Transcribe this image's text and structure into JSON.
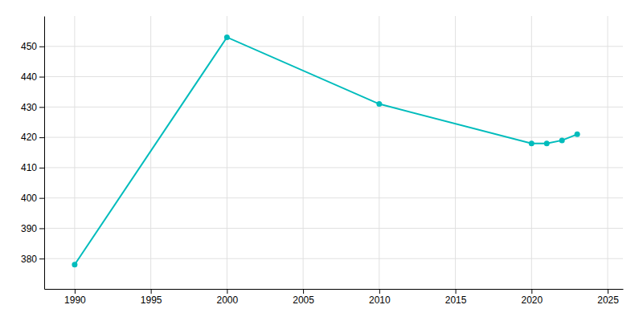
{
  "chart_data": {
    "type": "line",
    "x": [
      1990,
      2000,
      2010,
      2020,
      2021,
      2022,
      2023
    ],
    "values": [
      378,
      453,
      431,
      418,
      418,
      419,
      421
    ],
    "color": "#00BCBC",
    "marker": "circle",
    "xlim": [
      1988,
      2026
    ],
    "ylim": [
      370,
      460
    ],
    "xticks": [
      1990,
      1995,
      2000,
      2005,
      2010,
      2015,
      2020,
      2025
    ],
    "yticks": [
      380,
      390,
      400,
      410,
      420,
      430,
      440,
      450
    ],
    "grid": true
  }
}
